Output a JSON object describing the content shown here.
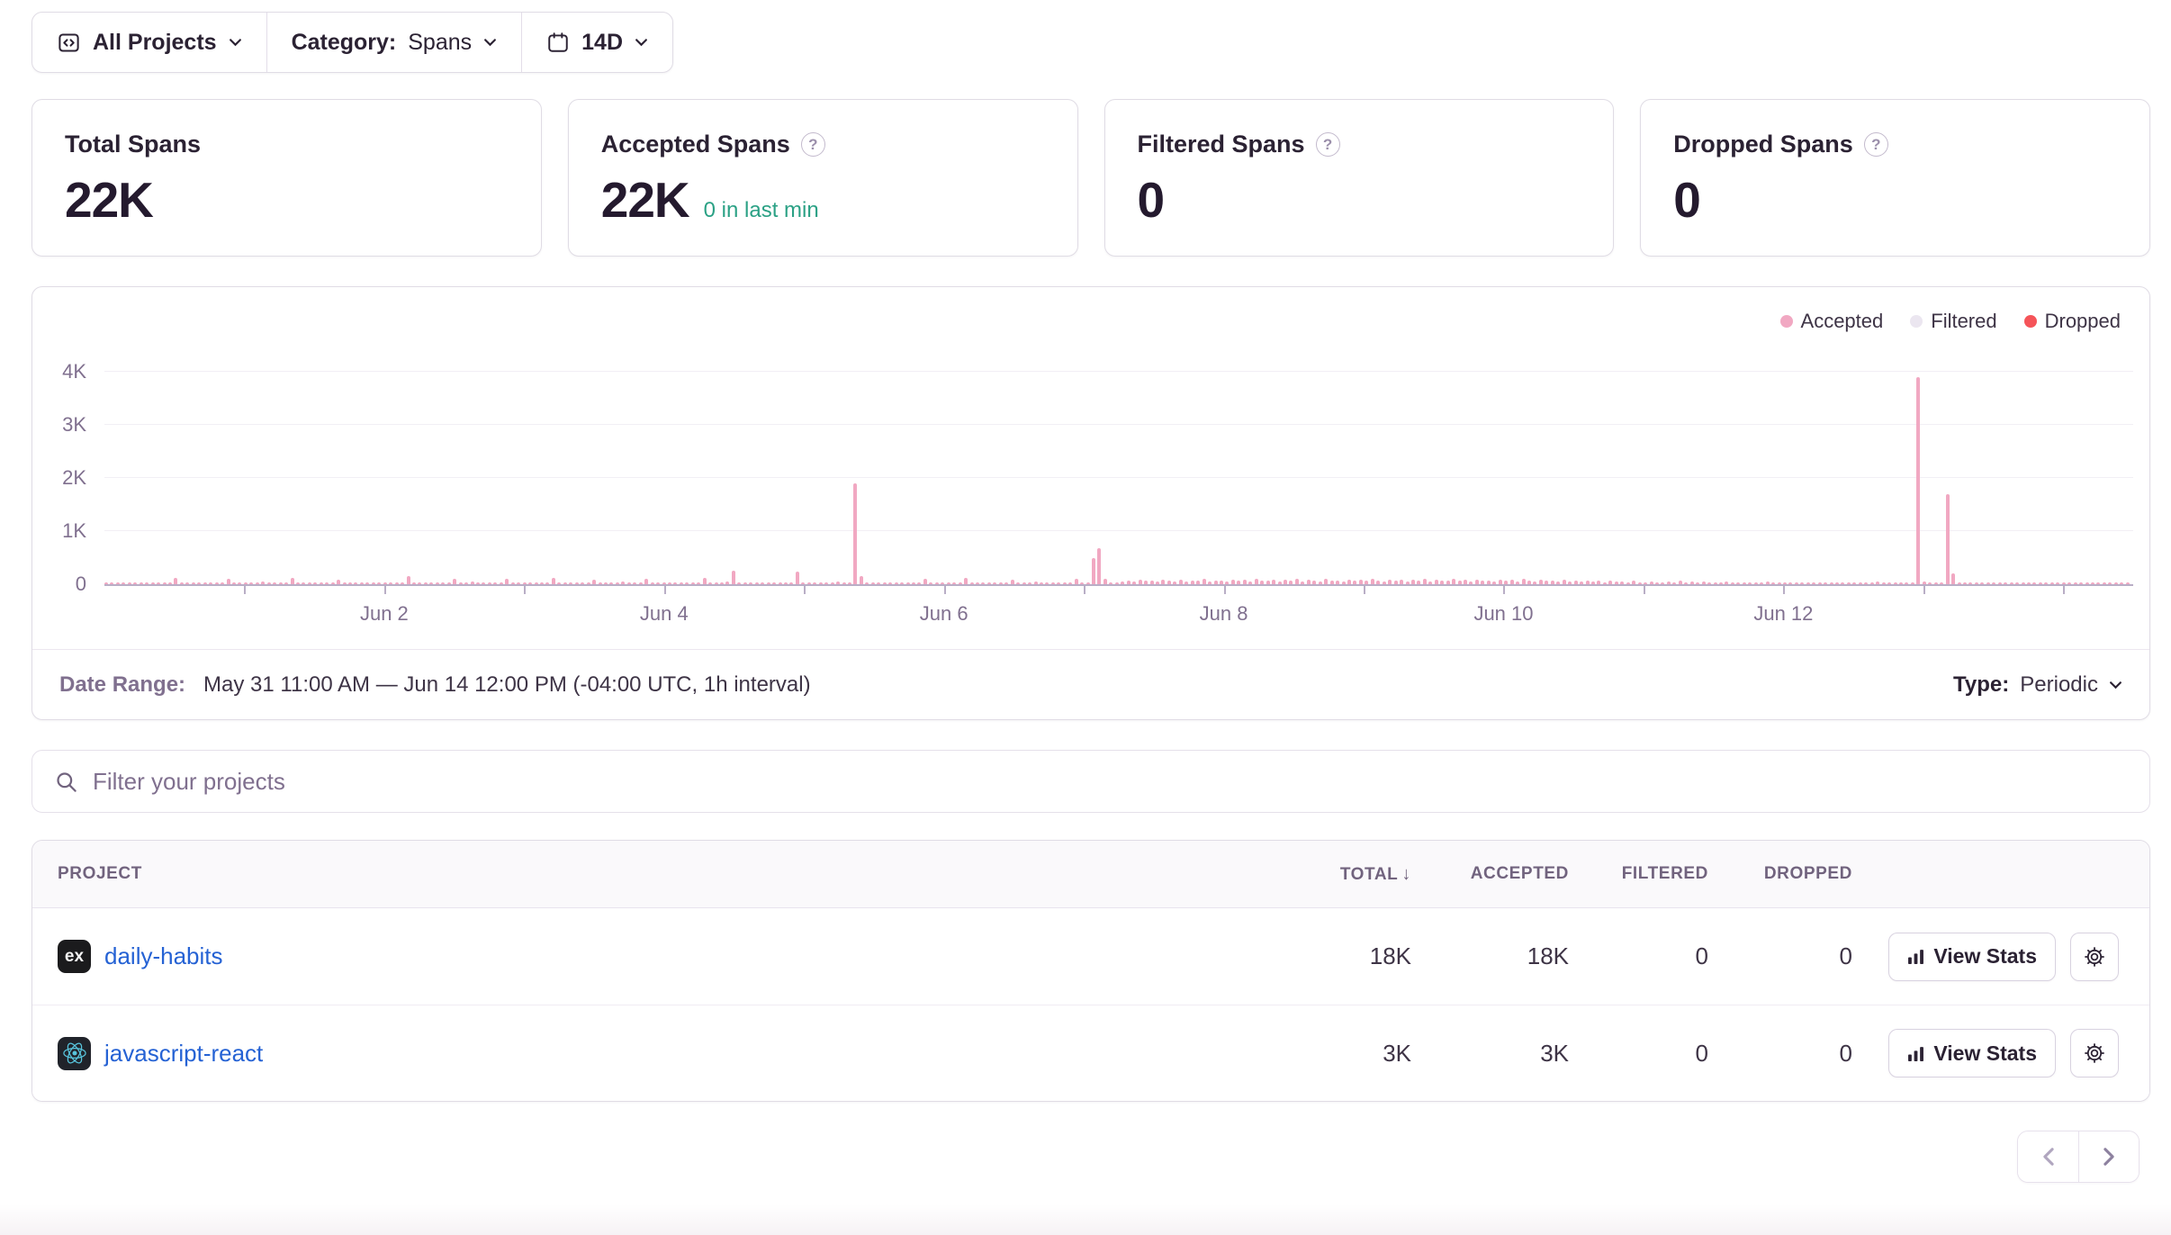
{
  "filters": {
    "projects_label": "All Projects",
    "category_label": "Category:",
    "category_value": "Spans",
    "period_value": "14D"
  },
  "cards": [
    {
      "title": "Total Spans",
      "value": "22K",
      "sub": ""
    },
    {
      "title": "Accepted Spans",
      "value": "22K",
      "sub": "0 in last min"
    },
    {
      "title": "Filtered Spans",
      "value": "0",
      "sub": ""
    },
    {
      "title": "Dropped Spans",
      "value": "0",
      "sub": ""
    }
  ],
  "chart_data": {
    "type": "bar",
    "unit": "spans per 1h interval",
    "x_start": "May 31 00:00",
    "x_end": "Jun 14 12:00",
    "interval_hours": 1,
    "ylim": [
      0,
      4000
    ],
    "y_ticks": [
      "0",
      "1K",
      "2K",
      "3K",
      "4K"
    ],
    "grid": true,
    "legend_position": "top-right",
    "legend": [
      {
        "label": "Accepted",
        "color": "#f1a8c2"
      },
      {
        "label": "Filtered",
        "color": "#ebe6f0"
      },
      {
        "label": "Dropped",
        "color": "#f55459"
      }
    ],
    "x_tick_labels": [
      {
        "label": "Jun 2",
        "hour": 48
      },
      {
        "label": "Jun 4",
        "hour": 96
      },
      {
        "label": "Jun 6",
        "hour": 144
      },
      {
        "label": "Jun 8",
        "hour": 192
      },
      {
        "label": "Jun 10",
        "hour": 240
      },
      {
        "label": "Jun 12",
        "hour": 288
      }
    ],
    "day_tick_every_hours": 24,
    "series": [
      {
        "name": "Accepted",
        "color": "#f1a8c2",
        "values": [
          30,
          24,
          36,
          28,
          33,
          26,
          40,
          30,
          25,
          38,
          31,
          27,
          115,
          29,
          34,
          26,
          42,
          30,
          28,
          36,
          24,
          98,
          32,
          28,
          27,
          35,
          29,
          44,
          30,
          26,
          38,
          31,
          120,
          28,
          34,
          27,
          40,
          29,
          36,
          25,
          90,
          33,
          28,
          42,
          30,
          26,
          35,
          29,
          31,
          27,
          38,
          30,
          145,
          28,
          33,
          26,
          41,
          30,
          36,
          24,
          95,
          31,
          28,
          44,
          29,
          35,
          27,
          38,
          30,
          105,
          26,
          33,
          29,
          40,
          27,
          34,
          30,
          125,
          28,
          36,
          31,
          26,
          42,
          29,
          88,
          33,
          27,
          38,
          30,
          44,
          26,
          35,
          29,
          100,
          31,
          27,
          34,
          28,
          40,
          30,
          26,
          37,
          31,
          115,
          27,
          35,
          29,
          43,
          250,
          30,
          36,
          26,
          33,
          41,
          28,
          35,
          30,
          38,
          27,
          230,
          30,
          42,
          28,
          36,
          31,
          27,
          44,
          29,
          35,
          1900,
          160,
          33,
          28,
          38,
          26,
          41,
          30,
          34,
          27,
          36,
          29,
          95,
          31,
          28,
          33,
          27,
          39,
          30,
          125,
          28,
          35,
          26,
          42,
          31,
          29,
          37,
          90,
          30,
          34,
          28,
          43,
          26,
          38,
          30,
          27,
          35,
          31,
          110,
          29,
          36,
          500,
          680,
          95,
          32,
          40,
          55,
          70,
          48,
          85,
          60,
          75,
          52,
          90,
          65,
          58,
          80,
          50,
          72,
          62,
          95,
          55,
          68,
          75,
          58,
          92,
          64,
          80,
          55,
          105,
          70,
          62,
          88,
          52,
          78,
          66,
          95,
          58,
          84,
          70,
          50,
          98,
          62,
          76,
          58,
          90,
          66,
          80,
          60,
          100,
          68,
          55,
          85,
          72,
          92,
          58,
          78,
          64,
          110,
          54,
          88,
          70,
          60,
          95,
          66,
          82,
          56,
          90,
          64,
          75,
          58,
          85,
          62,
          78,
          55,
          95,
          68,
          52,
          80,
          60,
          72,
          48,
          88,
          56,
          66,
          44,
          75,
          52,
          62,
          40,
          70,
          46,
          58,
          36,
          65,
          42,
          30,
          55,
          36,
          28,
          48,
          34,
          60,
          32,
          44,
          28,
          52,
          30,
          38,
          26,
          46,
          33,
          28,
          40,
          30,
          35,
          27,
          44,
          31,
          28,
          38,
          30,
          26,
          42,
          29,
          34,
          27,
          37,
          31,
          25,
          40,
          28,
          33,
          29,
          36,
          26,
          44,
          30,
          35,
          28,
          39,
          27,
          32,
          3900,
          45,
          30,
          36,
          28,
          1700,
          210,
          34,
          29,
          40,
          27,
          35,
          30,
          26,
          38,
          31,
          28,
          42,
          29,
          33,
          27,
          36,
          30,
          34,
          29,
          35,
          27,
          40,
          30,
          28,
          36,
          31,
          26,
          38,
          29,
          33,
          30
        ]
      },
      {
        "name": "Filtered",
        "color": "#ebe6f0",
        "values_note": "all zero"
      },
      {
        "name": "Dropped",
        "color": "#f55459",
        "values_note": "all zero"
      }
    ]
  },
  "date_range": {
    "label": "Date Range:",
    "value": "May 31 11:00 AM — Jun 14 12:00 PM (-04:00 UTC, 1h interval)",
    "type_label": "Type:",
    "type_value": "Periodic"
  },
  "search": {
    "placeholder": "Filter your projects"
  },
  "table": {
    "headers": {
      "project": "PROJECT",
      "total": "TOTAL",
      "accepted": "ACCEPTED",
      "filtered": "FILTERED",
      "dropped": "DROPPED"
    },
    "sort_icon": "↓",
    "rows": [
      {
        "project": "daily-habits",
        "platform": "express",
        "platform_glyph": "ex",
        "total": "18K",
        "accepted": "18K",
        "filtered": "0",
        "dropped": "0",
        "action": "View Stats"
      },
      {
        "project": "javascript-react",
        "platform": "react",
        "platform_glyph": "",
        "total": "3K",
        "accepted": "3K",
        "filtered": "0",
        "dropped": "0",
        "action": "View Stats"
      }
    ]
  },
  "colors": {
    "accepted_pink": "#f1a8c2",
    "dropped_red": "#f55459",
    "filtered_gray": "#ebe6f0",
    "link_blue": "#2562d4",
    "green": "#2ba185",
    "border": "#e0dce5",
    "axis_text": "#80708f"
  }
}
